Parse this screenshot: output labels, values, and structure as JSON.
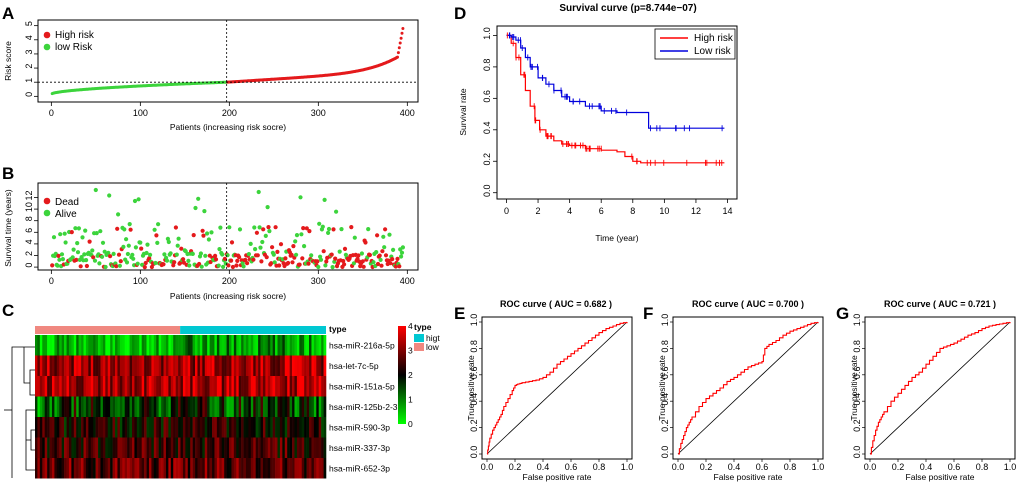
{
  "panels": {
    "A": {
      "label": "A",
      "ylabel": "Risk score",
      "xlabel": "Patients (increasing risk socre)",
      "yticks": [
        "0",
        "1",
        "2",
        "3",
        "4",
        "5"
      ],
      "xticks": [
        "0",
        "100",
        "200",
        "300",
        "400"
      ],
      "legend": [
        "High risk",
        "low Risk"
      ],
      "cutoff_index": 197,
      "cutoff_value": 1.0
    },
    "B": {
      "label": "B",
      "ylabel": "Survival time (years)",
      "xlabel": "Patients (increasing risk socre)",
      "yticks": [
        "0",
        "2",
        "4",
        "6",
        "8",
        "10",
        "12"
      ],
      "xticks": [
        "0",
        "100",
        "200",
        "300",
        "400"
      ],
      "legend": [
        "Dead",
        "Alive"
      ]
    },
    "C": {
      "label": "C",
      "genes": [
        "hsa-miR-216a-5p",
        "hsa-let-7c-5p",
        "hsa-miR-151a-5p",
        "hsa-miR-125b-2-3p",
        "hsa-miR-590-3p",
        "hsa-miR-337-3p",
        "hsa-miR-652-3p"
      ],
      "top_annotation_label": "type",
      "legend_title": "type",
      "legend_items": [
        "higt",
        "low"
      ],
      "scale_ticks": [
        "0",
        "1",
        "2",
        "3",
        "4"
      ]
    },
    "D": {
      "label": "D",
      "title": "Survival curve (p=8.744e−07)",
      "xlabel": "Time (year)",
      "ylabel": "Survival rate",
      "xticks": [
        "0",
        "2",
        "4",
        "6",
        "8",
        "10",
        "12",
        "14"
      ],
      "yticks": [
        "0.0",
        "0.2",
        "0.4",
        "0.6",
        "0.8",
        "1.0"
      ],
      "legend": [
        "High risk",
        "Low risk"
      ]
    },
    "E": {
      "label": "E",
      "title": "ROC curve ( AUC = 0.682 )"
    },
    "F": {
      "label": "F",
      "title": "ROC curve ( AUC = 0.700 )"
    },
    "G": {
      "label": "G",
      "title": "ROC curve ( AUC = 0.721 )"
    },
    "roc_common": {
      "xlabel": "False positive rate",
      "ylabel": "True positive rate",
      "ticks": [
        "0.0",
        "0.2",
        "0.4",
        "0.6",
        "0.8",
        "1.0"
      ]
    }
  },
  "colors": {
    "high": "#e41a1c",
    "low": "#3cd43c",
    "km_high": "#ff0000",
    "km_low": "#0000dd",
    "annot_high": "#00c8d2",
    "annot_low": "#f08880"
  },
  "chart_data": [
    {
      "id": "A",
      "type": "scatter",
      "title": "",
      "xlabel": "Patients (increasing risk socre)",
      "ylabel": "Risk score",
      "xlim": [
        0,
        400
      ],
      "ylim": [
        0,
        5
      ],
      "n": 395,
      "cutoff_index": 197,
      "cutoff_value": 1.0,
      "series": [
        {
          "name": "low Risk",
          "x_range": [
            1,
            197
          ],
          "y_range": [
            0.15,
            1.0
          ]
        },
        {
          "name": "High risk",
          "x_range": [
            198,
            395
          ],
          "y_range": [
            1.0,
            5.0
          ]
        }
      ]
    },
    {
      "id": "B",
      "type": "scatter",
      "title": "",
      "xlabel": "Patients (increasing risk socre)",
      "ylabel": "Survival time (years)",
      "xlim": [
        0,
        400
      ],
      "ylim": [
        0,
        14
      ],
      "series": [
        {
          "name": "Dead",
          "y_range": [
            0,
            9
          ]
        },
        {
          "name": "Alive",
          "y_range": [
            0,
            14
          ]
        }
      ]
    },
    {
      "id": "C",
      "type": "heatmap",
      "rows": [
        "hsa-miR-216a-5p",
        "hsa-let-7c-5p",
        "hsa-miR-151a-5p",
        "hsa-miR-125b-2-3p",
        "hsa-miR-590-3p",
        "hsa-miR-337-3p",
        "hsa-miR-652-3p"
      ],
      "row_mean_level": [
        0.8,
        3.3,
        3.3,
        1.6,
        2.2,
        2.4,
        2.7
      ],
      "columns": 395,
      "split": 197,
      "scale": [
        0,
        4
      ]
    },
    {
      "id": "D",
      "type": "line",
      "title": "Survival curve (p=8.744e−07)",
      "xlabel": "Time (year)",
      "ylabel": "Survival rate",
      "xlim": [
        0,
        14
      ],
      "ylim": [
        0,
        1
      ],
      "series": [
        {
          "name": "High risk",
          "x": [
            0,
            0.3,
            0.6,
            0.9,
            1.2,
            1.5,
            1.8,
            2.1,
            2.5,
            3,
            3.5,
            4,
            5,
            6,
            7,
            7.5,
            8,
            8.5,
            10,
            12,
            13.8
          ],
          "y": [
            1.0,
            0.95,
            0.86,
            0.75,
            0.65,
            0.55,
            0.46,
            0.4,
            0.36,
            0.33,
            0.31,
            0.3,
            0.28,
            0.27,
            0.26,
            0.23,
            0.2,
            0.19,
            0.19,
            0.19,
            0.19
          ]
        },
        {
          "name": "Low risk",
          "x": [
            0,
            0.3,
            0.6,
            0.9,
            1.2,
            1.5,
            2,
            2.5,
            3,
            3.5,
            4,
            5,
            6,
            7,
            8,
            8.8,
            9,
            10,
            12,
            13.8
          ],
          "y": [
            1.0,
            0.99,
            0.97,
            0.92,
            0.86,
            0.8,
            0.73,
            0.69,
            0.65,
            0.61,
            0.58,
            0.55,
            0.52,
            0.51,
            0.51,
            0.51,
            0.41,
            0.41,
            0.41,
            0.41
          ]
        }
      ]
    },
    {
      "id": "E",
      "type": "line",
      "title": "ROC curve ( AUC = 0.682 )",
      "xlabel": "False positive rate",
      "ylabel": "True positive rate",
      "xlim": [
        0,
        1
      ],
      "ylim": [
        0,
        1
      ],
      "x": [
        0,
        0.01,
        0.02,
        0.04,
        0.06,
        0.08,
        0.1,
        0.12,
        0.15,
        0.18,
        0.2,
        0.22,
        0.25,
        0.3,
        0.35,
        0.4,
        0.45,
        0.5,
        0.55,
        0.6,
        0.65,
        0.7,
        0.75,
        0.8,
        0.85,
        0.9,
        0.95,
        1.0
      ],
      "y": [
        0,
        0.06,
        0.12,
        0.18,
        0.22,
        0.26,
        0.3,
        0.36,
        0.42,
        0.48,
        0.52,
        0.53,
        0.54,
        0.55,
        0.56,
        0.58,
        0.62,
        0.68,
        0.72,
        0.76,
        0.8,
        0.84,
        0.88,
        0.92,
        0.95,
        0.97,
        0.99,
        1.0
      ]
    },
    {
      "id": "F",
      "type": "line",
      "title": "ROC curve ( AUC = 0.700 )",
      "xlabel": "False positive rate",
      "ylabel": "True positive rate",
      "xlim": [
        0,
        1
      ],
      "ylim": [
        0,
        1
      ],
      "x": [
        0,
        0.02,
        0.04,
        0.06,
        0.08,
        0.1,
        0.15,
        0.2,
        0.25,
        0.3,
        0.35,
        0.4,
        0.45,
        0.5,
        0.55,
        0.6,
        0.62,
        0.65,
        0.7,
        0.75,
        0.8,
        0.85,
        0.9,
        0.95,
        1.0
      ],
      "y": [
        0,
        0.08,
        0.14,
        0.2,
        0.24,
        0.28,
        0.36,
        0.42,
        0.46,
        0.5,
        0.55,
        0.58,
        0.62,
        0.66,
        0.68,
        0.7,
        0.8,
        0.83,
        0.86,
        0.9,
        0.93,
        0.95,
        0.97,
        0.99,
        1.0
      ]
    },
    {
      "id": "G",
      "type": "line",
      "title": "ROC curve ( AUC = 0.721 )",
      "xlabel": "False positive rate",
      "ylabel": "True positive rate",
      "xlim": [
        0,
        1
      ],
      "ylim": [
        0,
        1
      ],
      "x": [
        0,
        0.02,
        0.04,
        0.06,
        0.08,
        0.1,
        0.15,
        0.2,
        0.25,
        0.3,
        0.35,
        0.4,
        0.45,
        0.5,
        0.55,
        0.6,
        0.65,
        0.7,
        0.75,
        0.8,
        0.85,
        0.9,
        0.95,
        1.0
      ],
      "y": [
        0,
        0.1,
        0.18,
        0.24,
        0.28,
        0.32,
        0.4,
        0.46,
        0.52,
        0.58,
        0.62,
        0.68,
        0.74,
        0.8,
        0.82,
        0.84,
        0.87,
        0.9,
        0.92,
        0.95,
        0.97,
        0.98,
        0.99,
        1.0
      ]
    }
  ]
}
